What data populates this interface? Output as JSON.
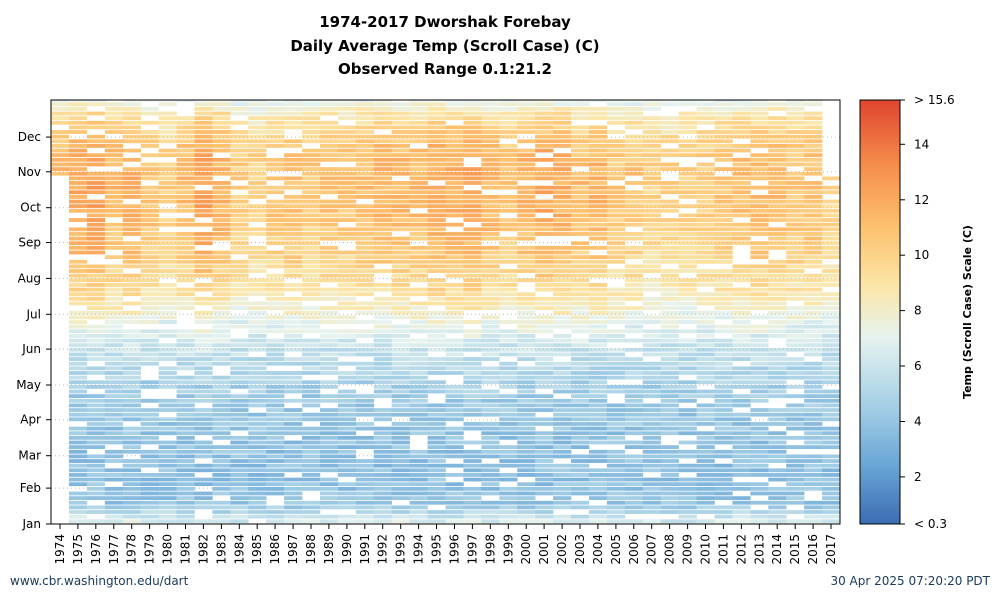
{
  "chart_data": {
    "type": "heatmap",
    "title": "1974-2017 Dworshak Forebay",
    "subtitle": "Daily Average Temp (Scroll Case) (C)",
    "subtitle2": "Observed Range 0.1:21.2",
    "x": [
      "1974",
      "1975",
      "1976",
      "1977",
      "1978",
      "1979",
      "1980",
      "1981",
      "1982",
      "1983",
      "1984",
      "1985",
      "1986",
      "1987",
      "1988",
      "1989",
      "1990",
      "1991",
      "1992",
      "1993",
      "1994",
      "1995",
      "1996",
      "1997",
      "1998",
      "1999",
      "2000",
      "2001",
      "2002",
      "2003",
      "2004",
      "2005",
      "2006",
      "2007",
      "2008",
      "2009",
      "2010",
      "2011",
      "2012",
      "2013",
      "2014",
      "2015",
      "2016",
      "2017"
    ],
    "y": [
      "Jan",
      "Feb",
      "Mar",
      "Apr",
      "May",
      "Jun",
      "Jul",
      "Aug",
      "Sep",
      "Oct",
      "Nov",
      "Dec"
    ],
    "colorbar": {
      "label": "Temp (Scroll Case) Scale (C)",
      "ticks": [
        "< 0.3",
        "2",
        "4",
        "6",
        "8",
        "10",
        "12",
        "14",
        "> 15.6"
      ],
      "tick_values": [
        0.3,
        2,
        4,
        6,
        8,
        10,
        12,
        14,
        15.6
      ],
      "range": [
        0.3,
        15.6
      ]
    },
    "colors": [
      "#3b6db3",
      "#6aa6d6",
      "#a6d0e6",
      "#e6f3ef",
      "#fbe6a8",
      "#fdc16f",
      "#f6904e",
      "#e0452e"
    ],
    "monthly_profile": [
      4.0,
      3.8,
      4.0,
      4.4,
      5.3,
      6.8,
      8.6,
      9.7,
      10.2,
      10.5,
      10.3,
      8.6
    ],
    "year_offsets": [
      0.6,
      1.5,
      1.8,
      0.8,
      1.2,
      0.4,
      -0.3,
      0.6,
      1.8,
      1.1,
      -0.2,
      -0.5,
      0.2,
      0.5,
      0.0,
      0.3,
      0.1,
      0.6,
      0.9,
      0.8,
      0.7,
      1.3,
      1.4,
      1.5,
      0.8,
      0.3,
      0.9,
      1.5,
      1.2,
      0.5,
      1.0,
      0.0,
      0.2,
      -0.5,
      -0.4,
      -0.2,
      -0.1,
      0.2,
      0.6,
      0.8,
      0.6,
      0.2,
      0.4,
      -0.6
    ]
  },
  "footer": {
    "left": "www.cbr.washington.edu/dart",
    "right": "30 Apr 2025 07:20:20 PDT"
  }
}
